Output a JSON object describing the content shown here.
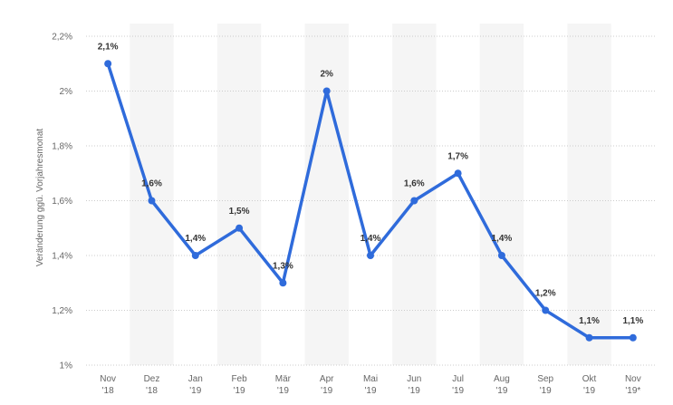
{
  "chart_data": {
    "type": "line",
    "title": "",
    "xlabel": "",
    "ylabel": "Veränderung ggü. Vorjahresmonat",
    "ylim": [
      1.0,
      2.2
    ],
    "yticks": [
      1.0,
      1.2,
      1.4,
      1.6,
      1.8,
      2.0,
      2.2
    ],
    "ytick_labels": [
      "1%",
      "1,2%",
      "1,4%",
      "1,6%",
      "1,8%",
      "2%",
      "2,2%"
    ],
    "grid": "horizontal dotted",
    "categories": [
      [
        "Nov",
        "'18"
      ],
      [
        "Dez",
        "'18"
      ],
      [
        "Jan",
        "'19"
      ],
      [
        "Feb",
        "'19"
      ],
      [
        "Mär",
        "'19"
      ],
      [
        "Apr",
        "'19"
      ],
      [
        "Mai",
        "'19"
      ],
      [
        "Jun",
        "'19"
      ],
      [
        "Jul",
        "'19"
      ],
      [
        "Aug",
        "'19"
      ],
      [
        "Sep",
        "'19"
      ],
      [
        "Okt",
        "'19"
      ],
      [
        "Nov",
        "'19*"
      ]
    ],
    "series": [
      {
        "values": [
          2.1,
          1.6,
          1.4,
          1.5,
          1.3,
          2.0,
          1.4,
          1.6,
          1.7,
          1.4,
          1.2,
          1.1,
          1.1
        ],
        "data_labels": [
          "2,1%",
          "1,6%",
          "1,4%",
          "1,5%",
          "1,3%",
          "2%",
          "1,4%",
          "1,6%",
          "1,7%",
          "1,4%",
          "1,2%",
          "1,1%",
          "1,1%"
        ],
        "color": "#2f6bdb"
      }
    ],
    "band_color": "#f5f5f5"
  }
}
